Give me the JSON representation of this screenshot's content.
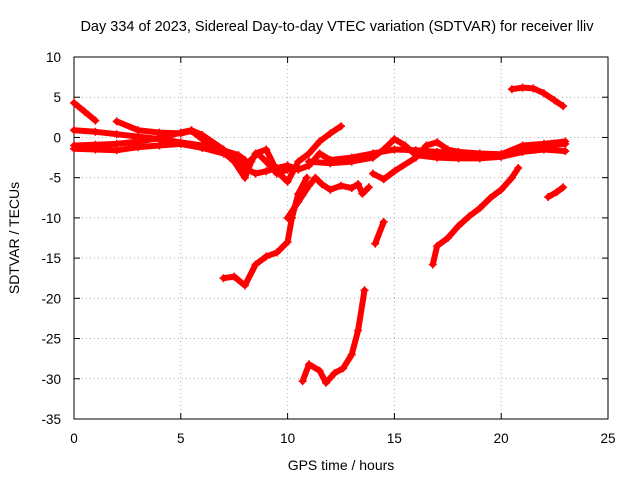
{
  "chart_data": {
    "type": "scatter",
    "title": "Day 334 of 2023, Sidereal Day-to-day VTEC variation (SDTVAR) for receiver lliv",
    "xlabel": "GPS time / hours",
    "ylabel": "SDTVAR / TECUs",
    "xlim": [
      0,
      25
    ],
    "ylim": [
      -35,
      10
    ],
    "xticks": [
      0,
      5,
      10,
      15,
      20,
      25
    ],
    "yticks": [
      10,
      5,
      0,
      -5,
      -10,
      -15,
      -20,
      -25,
      -30,
      -35
    ],
    "grid": true,
    "marker": "plus",
    "color": "#ff0000",
    "series": [
      {
        "values": [
          [
            0.0,
            4.3
          ],
          [
            0.5,
            3.2
          ],
          [
            1.0,
            2.1
          ]
        ]
      },
      {
        "values": [
          [
            0.0,
            0.9
          ],
          [
            1.0,
            0.7
          ],
          [
            2.0,
            0.4
          ],
          [
            3.0,
            0.1
          ],
          [
            4.0,
            -0.2
          ],
          [
            5.0,
            -0.6
          ],
          [
            6.0,
            -1.0
          ],
          [
            7.0,
            -1.6
          ],
          [
            7.7,
            -2.2
          ],
          [
            8.0,
            -2.8
          ]
        ]
      },
      {
        "values": [
          [
            0.0,
            -1.0
          ],
          [
            1.0,
            -0.9
          ],
          [
            2.0,
            -0.8
          ],
          [
            3.0,
            -0.5
          ],
          [
            4.0,
            -0.1
          ],
          [
            5.0,
            0.6
          ],
          [
            5.5,
            0.9
          ],
          [
            6.0,
            0.3
          ],
          [
            7.0,
            -1.5
          ],
          [
            7.5,
            -2.8
          ],
          [
            8.0,
            -3.8
          ],
          [
            8.5,
            -4.5
          ],
          [
            9.0,
            -4.2
          ],
          [
            9.5,
            -3.8
          ],
          [
            10.0,
            -3.5
          ]
        ]
      },
      {
        "values": [
          [
            0.0,
            -1.4
          ],
          [
            1.0,
            -1.5
          ],
          [
            2.0,
            -1.6
          ],
          [
            3.0,
            -1.2
          ],
          [
            4.0,
            -1.0
          ],
          [
            5.0,
            -0.8
          ],
          [
            6.0,
            -1.3
          ],
          [
            7.0,
            -2.0
          ],
          [
            8.0,
            -3.5
          ],
          [
            8.6,
            -2.0
          ],
          [
            9.0,
            -3.0
          ],
          [
            9.5,
            -4.5
          ],
          [
            10.0,
            -4.0
          ]
        ]
      },
      {
        "values": [
          [
            2.0,
            2.0
          ],
          [
            3.0,
            0.9
          ],
          [
            4.0,
            0.6
          ],
          [
            5.0,
            0.5
          ],
          [
            5.5,
            0.8
          ],
          [
            6.0,
            -0.2
          ],
          [
            6.5,
            -0.8
          ],
          [
            7.0,
            -1.8
          ],
          [
            7.5,
            -3.0
          ],
          [
            8.0,
            -5.0
          ],
          [
            8.3,
            -3.0
          ],
          [
            8.5,
            -2.0
          ],
          [
            9.0,
            -1.5
          ],
          [
            9.5,
            -4.2
          ],
          [
            10.0,
            -5.5
          ],
          [
            10.5,
            -3.0
          ],
          [
            11.0,
            -2.0
          ],
          [
            11.5,
            -0.5
          ],
          [
            12.0,
            0.5
          ],
          [
            12.5,
            1.4
          ]
        ]
      },
      {
        "values": [
          [
            10.0,
            -3.5
          ],
          [
            10.5,
            -4.0
          ],
          [
            11.0,
            -3.5
          ],
          [
            11.5,
            -2.0
          ],
          [
            12.0,
            -2.8
          ],
          [
            13.0,
            -2.5
          ],
          [
            14.0,
            -2.0
          ],
          [
            15.0,
            -1.5
          ],
          [
            16.0,
            -1.6
          ],
          [
            17.0,
            -1.8
          ],
          [
            18.0,
            -2.0
          ],
          [
            19.0,
            -2.2
          ],
          [
            20.0,
            -2.3
          ],
          [
            21.0,
            -1.5
          ],
          [
            22.0,
            -1.0
          ],
          [
            23.0,
            -0.8
          ]
        ]
      },
      {
        "values": [
          [
            11.0,
            -3.0
          ],
          [
            12.0,
            -3.2
          ],
          [
            13.0,
            -3.0
          ],
          [
            14.0,
            -2.5
          ],
          [
            14.5,
            -1.5
          ],
          [
            15.0,
            -0.2
          ],
          [
            15.5,
            -1.0
          ],
          [
            16.0,
            -2.2
          ],
          [
            17.0,
            -2.5
          ],
          [
            18.0,
            -2.6
          ],
          [
            19.0,
            -2.6
          ],
          [
            20.0,
            -2.4
          ],
          [
            21.0,
            -1.8
          ],
          [
            22.0,
            -1.5
          ],
          [
            23.0,
            -1.7
          ]
        ]
      },
      {
        "values": [
          [
            14.0,
            -4.5
          ],
          [
            14.5,
            -5.2
          ],
          [
            15.0,
            -4.2
          ],
          [
            16.0,
            -2.5
          ],
          [
            16.5,
            -1.0
          ],
          [
            17.0,
            -0.6
          ],
          [
            17.5,
            -1.5
          ],
          [
            18.0,
            -1.8
          ],
          [
            19.0,
            -2.0
          ],
          [
            20.0,
            -2.1
          ],
          [
            21.0,
            -1.0
          ],
          [
            22.0,
            -0.8
          ],
          [
            23.0,
            -0.5
          ]
        ]
      },
      {
        "values": [
          [
            10.0,
            -10.0
          ],
          [
            10.5,
            -8.0
          ],
          [
            11.0,
            -6.0
          ],
          [
            11.3,
            -5.0
          ],
          [
            11.6,
            -5.8
          ],
          [
            12.0,
            -6.5
          ],
          [
            12.5,
            -6.0
          ],
          [
            13.0,
            -6.3
          ],
          [
            13.3,
            -5.8
          ],
          [
            13.5,
            -7.0
          ],
          [
            13.8,
            -6.2
          ]
        ]
      },
      {
        "values": [
          [
            7.0,
            -17.5
          ],
          [
            7.5,
            -17.3
          ],
          [
            8.0,
            -18.4
          ],
          [
            8.5,
            -15.8
          ],
          [
            9.0,
            -14.8
          ],
          [
            9.5,
            -14.3
          ],
          [
            10.0,
            -13.0
          ],
          [
            10.2,
            -10.0
          ],
          [
            10.5,
            -7.0
          ],
          [
            10.9,
            -5.0
          ]
        ]
      },
      {
        "values": [
          [
            10.7,
            -30.3
          ],
          [
            11.0,
            -28.2
          ],
          [
            11.5,
            -29.0
          ],
          [
            11.8,
            -30.5
          ],
          [
            12.2,
            -29.3
          ],
          [
            12.6,
            -28.7
          ],
          [
            13.0,
            -27.0
          ],
          [
            13.3,
            -24.0
          ],
          [
            13.6,
            -19.0
          ]
        ]
      },
      {
        "values": [
          [
            14.1,
            -13.2
          ],
          [
            14.5,
            -10.5
          ]
        ]
      },
      {
        "values": [
          [
            16.8,
            -15.8
          ],
          [
            17.0,
            -13.5
          ],
          [
            17.5,
            -12.5
          ],
          [
            18.0,
            -11.0
          ],
          [
            18.5,
            -9.8
          ],
          [
            19.0,
            -8.8
          ],
          [
            19.5,
            -7.5
          ],
          [
            20.0,
            -6.5
          ],
          [
            20.5,
            -5.0
          ],
          [
            20.8,
            -3.8
          ]
        ]
      },
      {
        "values": [
          [
            20.5,
            6.0
          ],
          [
            21.0,
            6.2
          ],
          [
            21.5,
            6.1
          ],
          [
            22.0,
            5.5
          ],
          [
            22.5,
            4.6
          ],
          [
            22.9,
            3.9
          ]
        ]
      },
      {
        "values": [
          [
            22.2,
            -7.4
          ],
          [
            22.6,
            -6.8
          ],
          [
            22.9,
            -6.2
          ]
        ]
      }
    ]
  }
}
